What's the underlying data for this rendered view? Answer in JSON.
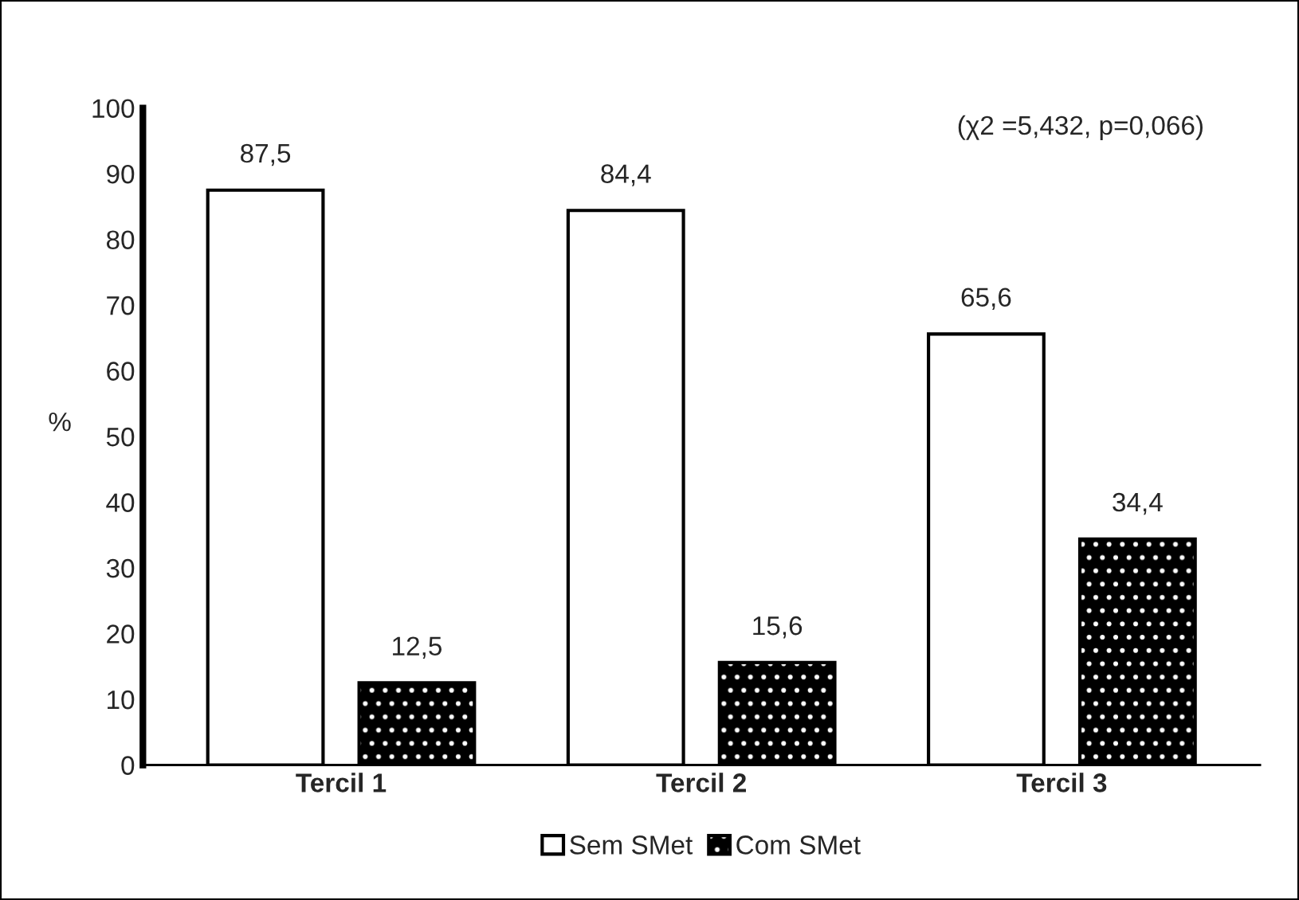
{
  "chart_data": {
    "type": "bar",
    "ylabel": "%",
    "categories": [
      "Tercil 1",
      "Tercil 2",
      "Tercil 3"
    ],
    "series": [
      {
        "name": "Sem SMet",
        "color": "#ffffff",
        "values": [
          87.5,
          84.4,
          65.6
        ],
        "value_labels": [
          "87,5",
          "84,4",
          "65,6"
        ]
      },
      {
        "name": "Com SMet",
        "color": "#000000",
        "values": [
          12.5,
          15.6,
          34.4
        ],
        "value_labels": [
          "12,5",
          "15,6",
          "34,4"
        ]
      }
    ],
    "ylim": [
      0,
      100
    ],
    "yticks": [
      0,
      10,
      20,
      30,
      40,
      50,
      60,
      70,
      80,
      90,
      100
    ],
    "grid": false,
    "legend": "bottom",
    "annotations": [
      "(χ2 =5,432, p=0,066)"
    ]
  }
}
